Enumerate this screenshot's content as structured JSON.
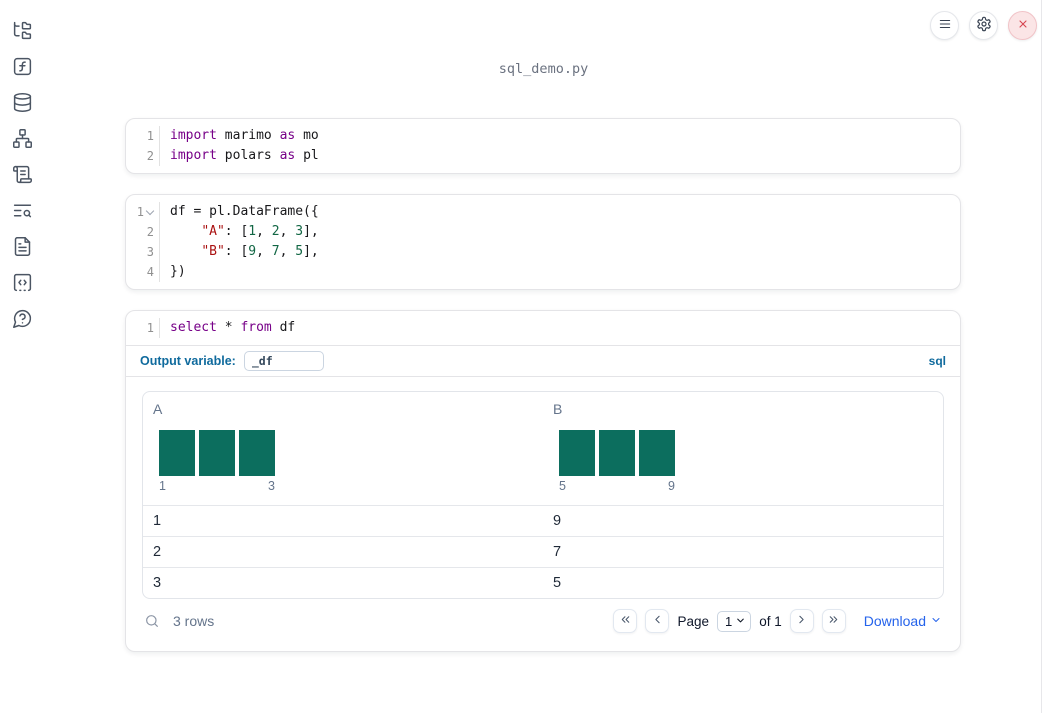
{
  "window": {
    "title": "sql_demo.py"
  },
  "theme": {
    "accent_blue": "#0f6a9d",
    "link_blue": "#2563eb",
    "histogram_teal": "#0c6e5e",
    "keyword_purple": "#770088",
    "string_red": "#aa1111",
    "number_green": "#116644"
  },
  "topbar": {
    "buttons": [
      {
        "name": "notebook-menu",
        "icon": "menu-icon"
      },
      {
        "name": "settings",
        "icon": "gear-icon"
      },
      {
        "name": "shutdown",
        "icon": "close-icon"
      }
    ]
  },
  "sidebar": {
    "items": [
      {
        "name": "files",
        "icon": "folder-tree-icon"
      },
      {
        "name": "variables",
        "icon": "function-square-icon"
      },
      {
        "name": "data-sources",
        "icon": "database-icon"
      },
      {
        "name": "dependency-graph",
        "icon": "network-icon"
      },
      {
        "name": "scratchpad",
        "icon": "scroll-text-icon"
      },
      {
        "name": "logs",
        "icon": "list-search-icon"
      },
      {
        "name": "documentation",
        "icon": "file-text-icon"
      },
      {
        "name": "snippets",
        "icon": "code-square-icon"
      },
      {
        "name": "help",
        "icon": "help-circle-icon"
      }
    ]
  },
  "cells": [
    {
      "lines": [
        {
          "num": "1",
          "tokens": [
            {
              "t": "k",
              "v": "import"
            },
            {
              "t": "t",
              "v": " marimo "
            },
            {
              "t": "k",
              "v": "as"
            },
            {
              "t": "t",
              "v": " mo"
            }
          ]
        },
        {
          "num": "2",
          "tokens": [
            {
              "t": "k",
              "v": "import"
            },
            {
              "t": "t",
              "v": " polars "
            },
            {
              "t": "k",
              "v": "as"
            },
            {
              "t": "t",
              "v": " pl"
            }
          ]
        }
      ]
    },
    {
      "lines": [
        {
          "num": "1",
          "fold": true,
          "tokens": [
            {
              "t": "t",
              "v": "df = pl.DataFrame({"
            }
          ]
        },
        {
          "num": "2",
          "tokens": [
            {
              "t": "t",
              "v": "    "
            },
            {
              "t": "s",
              "v": "\"A\""
            },
            {
              "t": "t",
              "v": ": ["
            },
            {
              "t": "n",
              "v": "1"
            },
            {
              "t": "t",
              "v": ", "
            },
            {
              "t": "n",
              "v": "2"
            },
            {
              "t": "t",
              "v": ", "
            },
            {
              "t": "n",
              "v": "3"
            },
            {
              "t": "t",
              "v": "],"
            }
          ]
        },
        {
          "num": "3",
          "tokens": [
            {
              "t": "t",
              "v": "    "
            },
            {
              "t": "s",
              "v": "\"B\""
            },
            {
              "t": "t",
              "v": ": ["
            },
            {
              "t": "n",
              "v": "9"
            },
            {
              "t": "t",
              "v": ", "
            },
            {
              "t": "n",
              "v": "7"
            },
            {
              "t": "t",
              "v": ", "
            },
            {
              "t": "n",
              "v": "5"
            },
            {
              "t": "t",
              "v": "],"
            }
          ]
        },
        {
          "num": "4",
          "tokens": [
            {
              "t": "t",
              "v": "})"
            }
          ]
        }
      ]
    },
    {
      "lines": [
        {
          "num": "1",
          "tokens": [
            {
              "t": "k",
              "v": "select"
            },
            {
              "t": "t",
              "v": " * "
            },
            {
              "t": "k",
              "v": "from"
            },
            {
              "t": "t",
              "v": " df"
            }
          ]
        }
      ]
    }
  ],
  "sql_cell": {
    "output_variable_label": "Output variable:",
    "output_variable_value": "_df",
    "language_badge": "sql"
  },
  "output": {
    "table": {
      "columns": [
        {
          "name": "A",
          "bins": [
            1,
            1,
            1
          ],
          "bin_labels": [
            "1",
            "3"
          ]
        },
        {
          "name": "B",
          "bins": [
            1,
            1,
            1
          ],
          "bin_labels": [
            "5",
            "9"
          ]
        }
      ],
      "rows": [
        [
          "1",
          "9"
        ],
        [
          "2",
          "7"
        ],
        [
          "3",
          "5"
        ]
      ]
    },
    "footer": {
      "row_count": "3 rows",
      "pagination": {
        "page_label": "Page",
        "page_value": "1",
        "of_label": "of 1"
      },
      "download_label": "Download"
    }
  }
}
